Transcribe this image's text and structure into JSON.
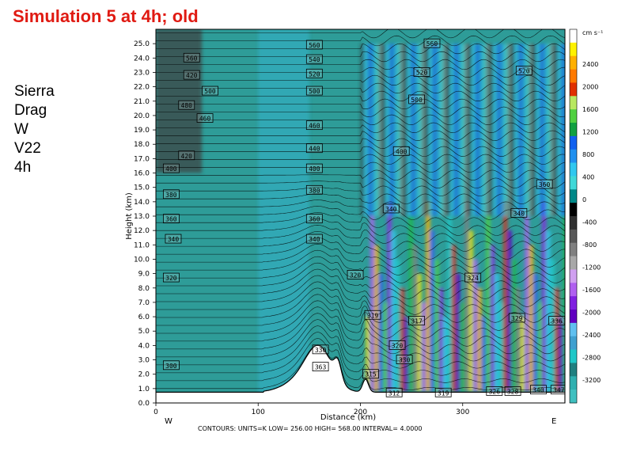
{
  "title": "Simulation 5 at 4h; old",
  "side_labels": [
    "Sierra",
    "Drag",
    "W",
    "V22",
    "4h"
  ],
  "chart_data": {
    "type": "heatmap",
    "xlabel": "Distance (km)",
    "ylabel": "Height (km)",
    "xlim": [
      0,
      400
    ],
    "ylim": [
      0,
      26
    ],
    "x_ticks": [
      0,
      100,
      200,
      300
    ],
    "y_ticks": [
      "0.0",
      "1.0",
      "2.0",
      "3.0",
      "4.0",
      "5.0",
      "6.0",
      "7.0",
      "8.0",
      "9.0",
      "10.0",
      "11.0",
      "12.0",
      "13.0",
      "14.0",
      "15.0",
      "16.0",
      "17.0",
      "18.0",
      "19.0",
      "20.0",
      "21.0",
      "22.0",
      "23.0",
      "24.0",
      "25.0"
    ],
    "x_end_labels": {
      "left": "W",
      "right": "E"
    },
    "colorbar": {
      "units": "cm s⁻¹",
      "levels": [
        "2400",
        "2000",
        "1600",
        "1200",
        "800",
        "400",
        "0",
        "-400",
        "-800",
        "-1200",
        "-1600",
        "-2000",
        "-2400",
        "-2800",
        "-3200"
      ],
      "colors": [
        "#ffffff",
        "#fff200",
        "#ffb000",
        "#ff7a00",
        "#e03000",
        "#b8e860",
        "#50d040",
        "#10a040",
        "#1060f0",
        "#2090f0",
        "#30c8f0",
        "#40d8d8",
        "#008888",
        "#000000",
        "#303030",
        "#585858",
        "#808080",
        "#a8a8a8",
        "#d0a0f0",
        "#b060f0",
        "#8020e0",
        "#6000c0",
        "#60c0f0",
        "#40a0d0",
        "#20c8c8",
        "#208080",
        "#30b0b0",
        "#40c0c0"
      ]
    },
    "contour_labels": [
      {
        "x": 155,
        "y": 24.9,
        "text": "560"
      },
      {
        "x": 155,
        "y": 23.9,
        "text": "540"
      },
      {
        "x": 155,
        "y": 22.9,
        "text": "520"
      },
      {
        "x": 155,
        "y": 21.7,
        "text": "500"
      },
      {
        "x": 155,
        "y": 19.3,
        "text": "460"
      },
      {
        "x": 155,
        "y": 17.7,
        "text": "440"
      },
      {
        "x": 155,
        "y": 16.3,
        "text": "400"
      },
      {
        "x": 155,
        "y": 14.8,
        "text": "380"
      },
      {
        "x": 155,
        "y": 12.8,
        "text": "360"
      },
      {
        "x": 155,
        "y": 11.4,
        "text": "340"
      },
      {
        "x": 35,
        "y": 24.0,
        "text": "560"
      },
      {
        "x": 35,
        "y": 22.8,
        "text": "420"
      },
      {
        "x": 53,
        "y": 21.7,
        "text": "500"
      },
      {
        "x": 30,
        "y": 20.7,
        "text": "480"
      },
      {
        "x": 48,
        "y": 19.8,
        "text": "460"
      },
      {
        "x": 30,
        "y": 17.2,
        "text": "420"
      },
      {
        "x": 15,
        "y": 16.3,
        "text": "400"
      },
      {
        "x": 15,
        "y": 14.5,
        "text": "380"
      },
      {
        "x": 15,
        "y": 12.8,
        "text": "360"
      },
      {
        "x": 17,
        "y": 11.4,
        "text": "340"
      },
      {
        "x": 15,
        "y": 8.7,
        "text": "320"
      },
      {
        "x": 15,
        "y": 2.6,
        "text": "300"
      },
      {
        "x": 270,
        "y": 25.0,
        "text": "560"
      },
      {
        "x": 260,
        "y": 23.0,
        "text": "520"
      },
      {
        "x": 255,
        "y": 21.1,
        "text": "500"
      },
      {
        "x": 240,
        "y": 17.5,
        "text": "400"
      },
      {
        "x": 230,
        "y": 13.5,
        "text": "340"
      },
      {
        "x": 355,
        "y": 13.2,
        "text": "340"
      },
      {
        "x": 380,
        "y": 15.2,
        "text": "360"
      },
      {
        "x": 360,
        "y": 23.1,
        "text": "520"
      },
      {
        "x": 195,
        "y": 8.9,
        "text": "320"
      },
      {
        "x": 310,
        "y": 8.7,
        "text": "324"
      },
      {
        "x": 212,
        "y": 6.1,
        "text": "319"
      },
      {
        "x": 255,
        "y": 5.7,
        "text": "317"
      },
      {
        "x": 353,
        "y": 5.9,
        "text": "329"
      },
      {
        "x": 392,
        "y": 5.7,
        "text": "336"
      },
      {
        "x": 236,
        "y": 4.0,
        "text": "320"
      },
      {
        "x": 243,
        "y": 3.0,
        "text": "330"
      },
      {
        "x": 161,
        "y": 3.7,
        "text": "330"
      },
      {
        "x": 161,
        "y": 2.5,
        "text": "363"
      },
      {
        "x": 210,
        "y": 2.0,
        "text": "315"
      },
      {
        "x": 233,
        "y": 0.7,
        "text": "312"
      },
      {
        "x": 281,
        "y": 0.7,
        "text": "319"
      },
      {
        "x": 331,
        "y": 0.8,
        "text": "326"
      },
      {
        "x": 349,
        "y": 0.8,
        "text": "328"
      },
      {
        "x": 374,
        "y": 0.9,
        "text": "340"
      },
      {
        "x": 394,
        "y": 0.9,
        "text": "347"
      }
    ],
    "bottom_note": "CONTOURS: UNITS=K LOW= 256.00 HIGH= 568.00 INTERVAL= 4.0000",
    "legend": "right"
  }
}
